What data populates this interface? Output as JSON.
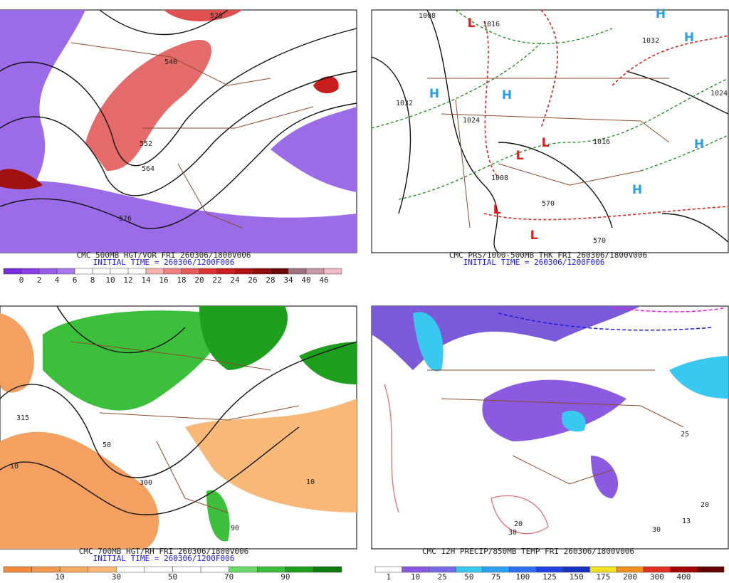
{
  "panels": [
    {
      "caption": "CMC 500MB HGT/VOR FRI 260306/1800V006",
      "initial_time": "INITIAL TIME = 260306/1200F006",
      "colorbar": {
        "labels": [
          0,
          2,
          4,
          6,
          8,
          10,
          12,
          14,
          16,
          18,
          20,
          22,
          24,
          26,
          28,
          34,
          40,
          46
        ],
        "colors": [
          "#7a2be0",
          "#8a3ee6",
          "#9a5aea",
          "#a978ee",
          "#ffffff",
          "#ffffff",
          "#ffffff",
          "#ffffff",
          "#f7b0b0",
          "#f08080",
          "#e85858",
          "#dc3434",
          "#c81e1e",
          "#b01010",
          "#900a0a",
          "#6e0606",
          "#a07080",
          "#c898a8",
          "#f0b8c8"
        ]
      },
      "map_labels": [
        "528",
        "540",
        "552",
        "564",
        "576"
      ]
    },
    {
      "caption": "CMC PRS/1000-500MB THK FRI 260306/1800V006",
      "initial_time": "INITIAL TIME = 260306/1200F006",
      "map_labels": [
        "1008",
        "1016",
        "1032",
        "1024",
        "1016",
        "1008",
        "570",
        "570",
        "1032",
        "1024",
        "H",
        "H",
        "H",
        "H",
        "H",
        "H",
        "L",
        "L",
        "L",
        "L",
        "L"
      ]
    },
    {
      "caption": "CMC 700MB HGT/RH FRI 260306/1800V006",
      "initial_time": "INITIAL TIME = 260306/1200F006",
      "colorbar": {
        "labels": [
          10,
          30,
          50,
          70,
          90
        ],
        "colors": [
          "#f08a3a",
          "#f39a4e",
          "#f5aa62",
          "#f7b878",
          "#ffffff",
          "#ffffff",
          "#ffffff",
          "#ffffff",
          "#6ad86a",
          "#3cc03c",
          "#1ea01e",
          "#0e7a0e"
        ]
      },
      "map_labels": [
        "315",
        "10",
        "300",
        "50",
        "90",
        "10"
      ]
    },
    {
      "caption": "CMC 12H PRECIP/850MB TEMP FRI 260306/1800V006",
      "colorbar": {
        "labels": [
          1,
          10,
          25,
          50,
          75,
          100,
          125,
          150,
          175,
          200,
          300,
          400
        ],
        "colors": [
          "#ffffff",
          "#8c5ae0",
          "#7a6ae6",
          "#38c8f0",
          "#30a0f0",
          "#3070f0",
          "#2040e0",
          "#1830c0",
          "#f0e020",
          "#f09020",
          "#e03020",
          "#a00000",
          "#600000"
        ]
      },
      "map_labels": [
        "20",
        "13",
        "30",
        "25",
        "30",
        "20"
      ]
    }
  ]
}
